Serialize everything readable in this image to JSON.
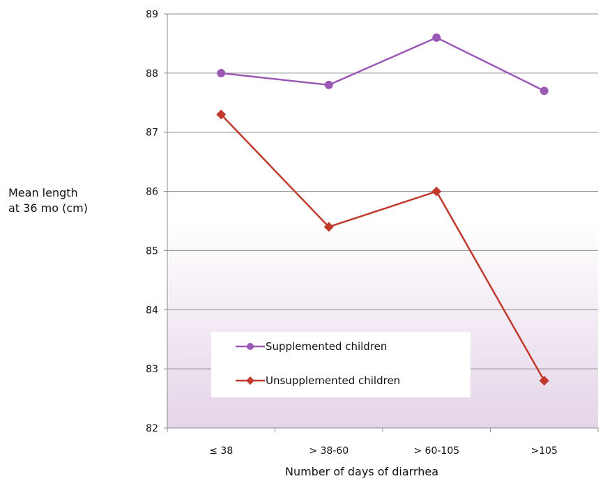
{
  "chart_data": {
    "type": "line",
    "title": "",
    "xlabel": "Number of days of diarrhea",
    "ylabel_lines": [
      "Mean length",
      "at 36 mo (cm)"
    ],
    "categories": [
      "≤ 38",
      "> 38-60",
      "> 60-105",
      ">105"
    ],
    "ylim": [
      82,
      89
    ],
    "yticks": [
      82,
      83,
      84,
      85,
      86,
      87,
      88,
      89
    ],
    "grid": true,
    "legend_position": "lower-left",
    "series": [
      {
        "name": "Supplemented children",
        "values": [
          88.0,
          87.8,
          88.6,
          87.7
        ],
        "color": "#9b59b6",
        "marker": "circle"
      },
      {
        "name": "Unsupplemented children",
        "values": [
          87.3,
          85.4,
          86.0,
          82.8
        ],
        "color": "#c0392b",
        "marker": "diamond"
      }
    ]
  }
}
